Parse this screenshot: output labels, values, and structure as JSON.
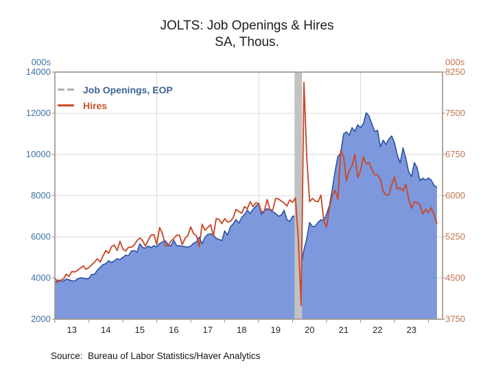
{
  "title": {
    "line1": "JOLTS: Job Openings & Hires",
    "line2": "SA, Thous."
  },
  "source_note": "Source:  Bureau of Labor Statistics/Haver Analytics",
  "legend": {
    "items": [
      {
        "label": "Job Openings, EOP",
        "marker_color": "#adadad",
        "text_color": "#3d6397",
        "marker_style": "dashed"
      },
      {
        "label": "Hires",
        "marker_color": "#c8492b",
        "text_color": "#c8552f",
        "marker_style": "solid"
      }
    ]
  },
  "colors": {
    "openings_fill": "#7d98dc",
    "openings_edge": "#2a51a3",
    "hires_line": "#c8492b",
    "left_axis_text": "#3e6fa6",
    "right_axis_text": "#c4704c",
    "gridline": "#d9d9d9",
    "frame": "#a39890",
    "recession_band": "#c2c2c2",
    "background": "#ffffff"
  },
  "chart_data": {
    "type": "area",
    "title": "JOLTS: Job Openings & Hires",
    "subtitle": "SA, Thous.",
    "x_interval": "monthly",
    "x_start": "2013-01",
    "x_end": "2024-04",
    "axes": {
      "left": {
        "header": "000s",
        "min": 2000,
        "max": 14000,
        "ticks": [
          14000,
          12000,
          10000,
          8000,
          6000,
          4000,
          2000
        ]
      },
      "right": {
        "header": "000s",
        "min": 3750,
        "max": 8250,
        "ticks": [
          8250,
          7500,
          6750,
          6000,
          5250,
          4500,
          3750
        ]
      },
      "x": {
        "labels": [
          "13",
          "14",
          "15",
          "16",
          "17",
          "18",
          "19",
          "20",
          "21",
          "22",
          "23"
        ],
        "first_label_year": 2013,
        "domain_start_year": 2013.0,
        "domain_end_year": 2024.42,
        "gridline_years": [
          2016,
          2019,
          2022
        ]
      }
    },
    "recession_band": {
      "start": "2020-02",
      "end": "2020-04"
    },
    "series": [
      {
        "name": "Job Openings, EOP",
        "axis": "left",
        "style": "area",
        "values": [
          3760,
          3900,
          3880,
          3840,
          3950,
          3910,
          3870,
          3850,
          3960,
          4010,
          4000,
          3960,
          3990,
          4170,
          4180,
          4380,
          4520,
          4650,
          4700,
          4840,
          4750,
          4830,
          4940,
          4890,
          5000,
          5110,
          5080,
          5310,
          5330,
          5250,
          5660,
          5480,
          5450,
          5550,
          5480,
          5570,
          5520,
          5680,
          5750,
          5810,
          5620,
          5550,
          5830,
          5570,
          5570,
          5550,
          5520,
          5500,
          5550,
          5690,
          5750,
          5980,
          5670,
          5970,
          6120,
          6140,
          6090,
          5930,
          5880,
          5810,
          6290,
          6080,
          6480,
          6630,
          6840,
          6660,
          6940,
          7080,
          7300,
          7130,
          7330,
          7480,
          7620,
          7090,
          7250,
          7370,
          7300,
          7230,
          7130,
          7000,
          7060,
          7290,
          6830,
          6750,
          7000,
          7000,
          6010,
          4630,
          5370,
          5900,
          6700,
          6490,
          6520,
          6700,
          6830,
          6790,
          7100,
          7520,
          8300,
          9190,
          9900,
          10070,
          10990,
          11100,
          10930,
          11300,
          11120,
          11440,
          11300,
          11500,
          12030,
          11860,
          11480,
          11110,
          11170,
          10370,
          10690,
          10480,
          10750,
          10900,
          10560,
          9970,
          9590,
          10320,
          9820,
          9160,
          8920,
          9610,
          9350,
          8730,
          8850,
          8750,
          8860,
          8750,
          8490,
          8400
        ]
      },
      {
        "name": "Hires",
        "axis": "right",
        "style": "line",
        "values": [
          4500,
          4420,
          4460,
          4480,
          4570,
          4530,
          4620,
          4610,
          4640,
          4680,
          4720,
          4660,
          4690,
          4740,
          4790,
          4850,
          4790,
          4900,
          5000,
          4950,
          5070,
          5100,
          5000,
          5170,
          5030,
          4990,
          5060,
          5060,
          5100,
          5180,
          5230,
          5180,
          5080,
          5190,
          5280,
          5290,
          5110,
          5420,
          5310,
          5090,
          5080,
          5170,
          5220,
          5280,
          5280,
          5110,
          5220,
          5280,
          5430,
          5310,
          5270,
          5070,
          5480,
          5370,
          5420,
          5470,
          5270,
          5580,
          5570,
          5490,
          5580,
          5520,
          5530,
          5600,
          5750,
          5710,
          5680,
          5800,
          5760,
          5890,
          5800,
          5870,
          5860,
          5700,
          5720,
          5930,
          5740,
          5740,
          5950,
          5940,
          5900,
          5870,
          5810,
          5920,
          5880,
          5960,
          5210,
          4000,
          8060,
          6700,
          5890,
          5950,
          5900,
          5890,
          6010,
          5540,
          5430,
          5790,
          6000,
          6100,
          5930,
          6830,
          6700,
          6270,
          6460,
          6540,
          6750,
          6330,
          6460,
          6700,
          6580,
          6600,
          6480,
          6380,
          6380,
          6300,
          6080,
          6010,
          6010,
          6200,
          6340,
          6120,
          6140,
          6090,
          6210,
          5940,
          5770,
          5890,
          5870,
          5830,
          5670,
          5750,
          5690,
          5780,
          5650,
          5480
        ]
      }
    ]
  }
}
